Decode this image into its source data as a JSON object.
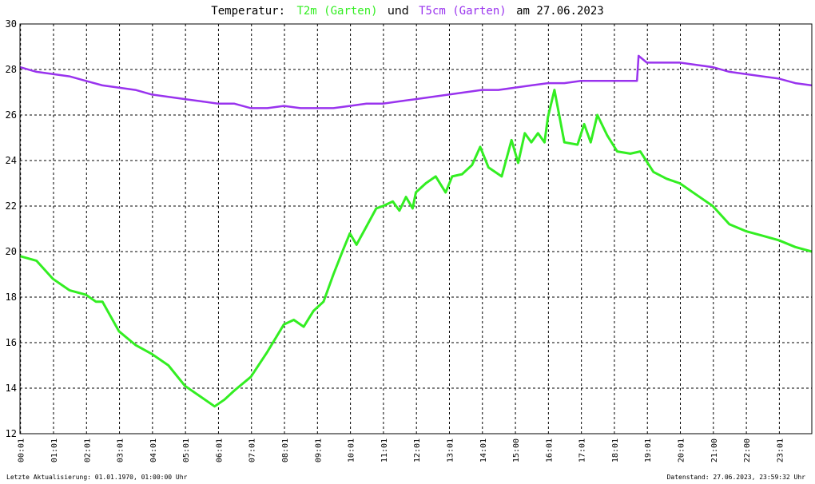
{
  "title": {
    "prefix": "Temperatur:",
    "series1": "T2m (Garten)",
    "join": "und",
    "series2": "T5cm (Garten)",
    "suffix": "am 27.06.2023"
  },
  "footer": {
    "left": "Letzte Aktualisierung: 01.01.1970, 01:00:00 Uhr",
    "right": "Datenstand: 27.06.2023, 23:59:32 Uhr"
  },
  "colors": {
    "t2m": "#33ee22",
    "t5cm": "#9933ee",
    "grid": "#000000",
    "background": "#ffffff"
  },
  "chart_data": {
    "type": "line",
    "title": "Temperatur: T2m (Garten) und T5cm (Garten) am 27.06.2023",
    "xlabel": "",
    "ylabel": "",
    "ylim": [
      12,
      30
    ],
    "xlim": [
      0,
      24
    ],
    "x_unit": "hours since 00:00 on 27.06.2023",
    "yticks": [
      "12",
      "14",
      "16",
      "18",
      "20",
      "22",
      "24",
      "26",
      "28",
      "30"
    ],
    "xticks": [
      "00:01",
      "01:01",
      "02:01",
      "03:01",
      "04:01",
      "05:01",
      "06:01",
      "07:01",
      "08:01",
      "09:01",
      "10:01",
      "11:01",
      "12:01",
      "13:01",
      "14:01",
      "15:00",
      "16:01",
      "17:01",
      "18:01",
      "19:01",
      "20:01",
      "21:00",
      "22:00",
      "23:01"
    ],
    "grid": true,
    "series": [
      {
        "name": "T2m (Garten)",
        "color": "#33ee22",
        "x": [
          0,
          0.5,
          1,
          1.5,
          2,
          2.3,
          2.5,
          3,
          3.5,
          4,
          4.5,
          5,
          5.5,
          5.9,
          6.2,
          6.5,
          7,
          7.5,
          8,
          8.3,
          8.6,
          8.9,
          9.2,
          9.5,
          9.8,
          10,
          10.2,
          10.5,
          10.8,
          11,
          11.3,
          11.5,
          11.7,
          11.9,
          12,
          12.3,
          12.6,
          12.9,
          13.1,
          13.4,
          13.7,
          13.95,
          14.2,
          14.6,
          14.9,
          15.1,
          15.3,
          15.5,
          15.7,
          15.9,
          16.0,
          16.2,
          16.5,
          16.9,
          17.1,
          17.3,
          17.5,
          17.8,
          18.1,
          18.5,
          18.8,
          19.2,
          19.6,
          20,
          20.5,
          21,
          21.5,
          22,
          22.5,
          23,
          23.5,
          24
        ],
        "values": [
          19.8,
          19.6,
          18.8,
          18.3,
          18.1,
          17.8,
          17.8,
          16.5,
          15.9,
          15.5,
          15.0,
          14.1,
          13.6,
          13.2,
          13.5,
          13.9,
          14.5,
          15.6,
          16.8,
          17.0,
          16.7,
          17.4,
          17.8,
          19.0,
          20.1,
          20.8,
          20.3,
          21.1,
          21.9,
          22.0,
          22.2,
          21.8,
          22.4,
          21.9,
          22.6,
          23.0,
          23.3,
          22.6,
          23.3,
          23.4,
          23.8,
          24.6,
          23.7,
          23.3,
          24.9,
          23.9,
          25.2,
          24.8,
          25.2,
          24.8,
          25.9,
          27.1,
          24.8,
          24.7,
          25.6,
          24.8,
          26.0,
          25.1,
          24.4,
          24.3,
          24.4,
          23.5,
          23.2,
          23.0,
          22.5,
          22.0,
          21.2,
          20.9,
          20.7,
          20.5,
          20.2,
          20.0
        ]
      },
      {
        "name": "T5cm (Garten)",
        "color": "#9933ee",
        "x": [
          0,
          0.5,
          1,
          1.5,
          2,
          2.5,
          3,
          3.5,
          4,
          4.5,
          5,
          5.5,
          6,
          6.5,
          7,
          7.5,
          8,
          8.5,
          9,
          9.5,
          10,
          10.5,
          11,
          11.5,
          12,
          12.5,
          13,
          13.5,
          14,
          14.5,
          15,
          15.5,
          16,
          16.5,
          17,
          17.5,
          18,
          18.4,
          18.7,
          18.75,
          19,
          19.5,
          20,
          20.5,
          21,
          21.5,
          22,
          22.5,
          23,
          23.5,
          24
        ],
        "values": [
          28.1,
          27.9,
          27.8,
          27.7,
          27.5,
          27.3,
          27.2,
          27.1,
          26.9,
          26.8,
          26.7,
          26.6,
          26.5,
          26.5,
          26.3,
          26.3,
          26.4,
          26.3,
          26.3,
          26.3,
          26.4,
          26.5,
          26.5,
          26.6,
          26.7,
          26.8,
          26.9,
          27.0,
          27.1,
          27.1,
          27.2,
          27.3,
          27.4,
          27.4,
          27.5,
          27.5,
          27.5,
          27.5,
          27.5,
          28.6,
          28.3,
          28.3,
          28.3,
          28.2,
          28.1,
          27.9,
          27.8,
          27.7,
          27.6,
          27.4,
          27.3
        ]
      }
    ]
  }
}
